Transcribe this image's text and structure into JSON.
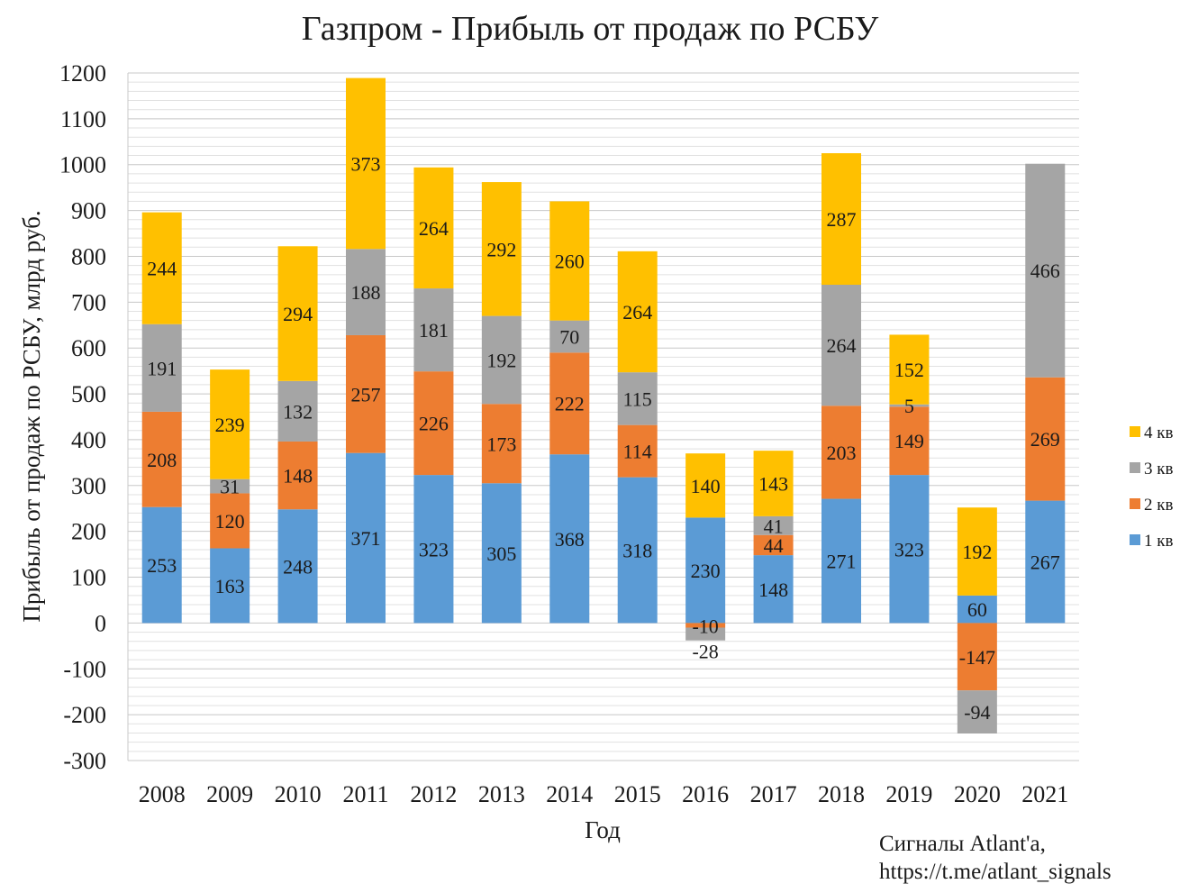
{
  "chart_data": {
    "type": "bar",
    "stacked": true,
    "title": "Газпром - Прибыль от продаж по РСБУ",
    "xlabel": "Год",
    "ylabel": "Прибыль от продаж по РСБУ, млрд руб.",
    "ylim": [
      -300,
      1200
    ],
    "ytick_step": 100,
    "grid": true,
    "legend_position": "right",
    "categories": [
      "2008",
      "2009",
      "2010",
      "2011",
      "2012",
      "2013",
      "2014",
      "2015",
      "2016",
      "2017",
      "2018",
      "2019",
      "2020",
      "2021"
    ],
    "series": [
      {
        "name": "1 кв",
        "color": "#5b9bd5",
        "values": [
          253,
          163,
          248,
          371,
          323,
          305,
          368,
          318,
          230,
          148,
          271,
          323,
          60,
          267
        ]
      },
      {
        "name": "2 кв",
        "color": "#ed7d31",
        "values": [
          208,
          120,
          148,
          257,
          226,
          173,
          222,
          114,
          -10,
          44,
          203,
          149,
          -147,
          269
        ]
      },
      {
        "name": "3 кв",
        "color": "#a5a5a5",
        "values": [
          191,
          31,
          132,
          188,
          181,
          192,
          70,
          115,
          -28,
          41,
          264,
          5,
          -94,
          466
        ]
      },
      {
        "name": "4 кв",
        "color": "#ffc000",
        "values": [
          244,
          239,
          294,
          373,
          264,
          292,
          260,
          264,
          140,
          143,
          287,
          152,
          192,
          null
        ]
      }
    ]
  },
  "credit": {
    "line1": "Сигналы Atlant'a,",
    "line2": "https://t.me/atlant_signals"
  }
}
